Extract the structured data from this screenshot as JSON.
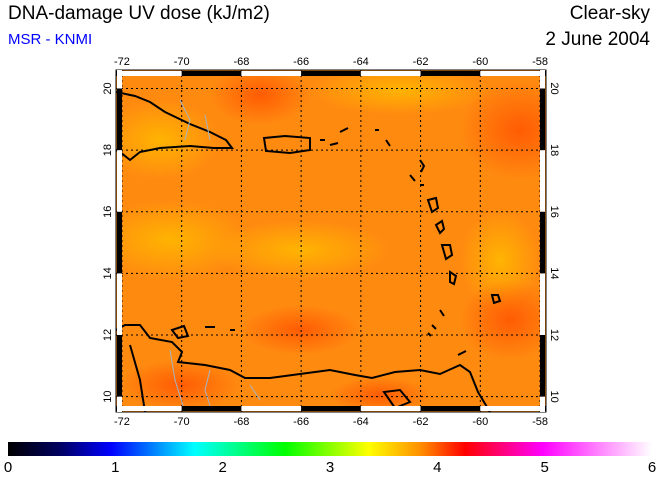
{
  "header": {
    "title": "DNA-damage UV dose (kJ/m2)",
    "source": "MSR - KNMI",
    "mode": "Clear-sky",
    "date": "2 June 2004"
  },
  "map": {
    "lon_ticks": [
      "-72",
      "-70",
      "-68",
      "-66",
      "-64",
      "-62",
      "-60",
      "-58"
    ],
    "lat_ticks": [
      "20",
      "18",
      "16",
      "14",
      "12",
      "10"
    ],
    "lon_range": [
      -72.2,
      -57.8
    ],
    "lat_range": [
      9.5,
      20.6
    ]
  },
  "colorbar": {
    "labels": [
      "0",
      "1",
      "2",
      "3",
      "4",
      "5",
      "6"
    ],
    "range": [
      0,
      6
    ],
    "colors": [
      "#000000",
      "#000080",
      "#0000ff",
      "#00ffff",
      "#00ff00",
      "#ffff00",
      "#ff8000",
      "#ff0000",
      "#ff00ff",
      "#ffffff"
    ]
  }
}
